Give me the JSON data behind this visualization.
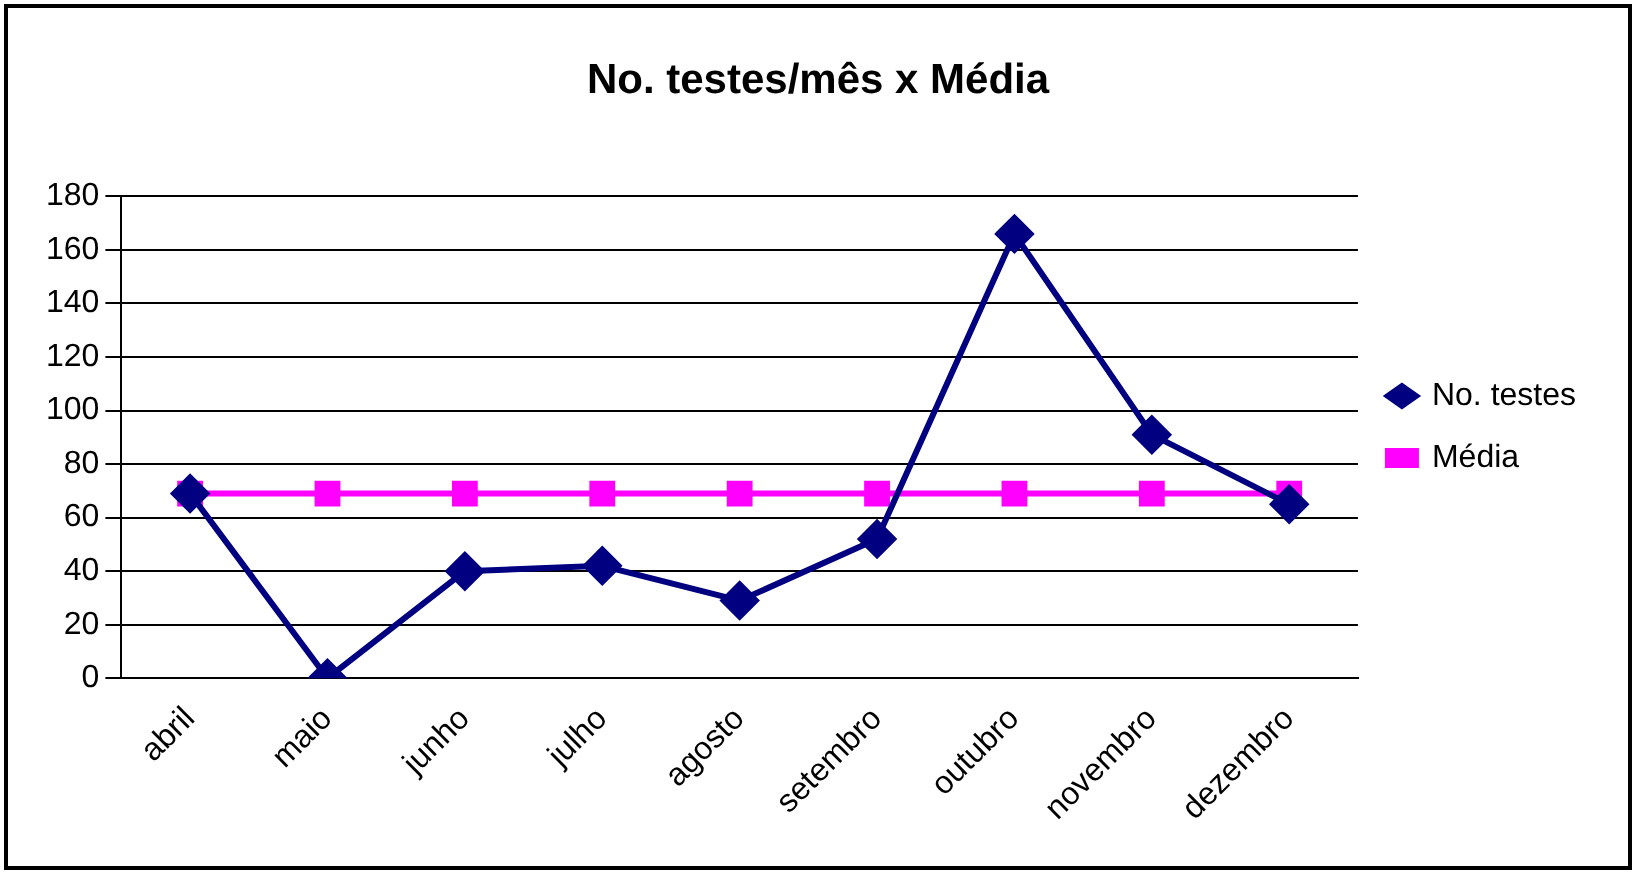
{
  "chart_data": {
    "type": "line",
    "title": "No. testes/mês x Média",
    "categories": [
      "abril",
      "maio",
      "junho",
      "julho",
      "agosto",
      "setembro",
      "outubro",
      "novembro",
      "dezembro"
    ],
    "series": [
      {
        "name": "No. testes",
        "color": "#000080",
        "marker": "diamond",
        "values": [
          69,
          0,
          40,
          42,
          29,
          52,
          166,
          91,
          65
        ]
      },
      {
        "name": "Média",
        "color": "#ff00ff",
        "marker": "square",
        "values": [
          69,
          69,
          69,
          69,
          69,
          69,
          69,
          69,
          69
        ]
      }
    ],
    "ylim": [
      0,
      180
    ],
    "yticks": [
      0,
      20,
      40,
      60,
      80,
      100,
      120,
      140,
      160,
      180
    ],
    "grid": "y",
    "legend": "right",
    "line_style": "solid"
  }
}
